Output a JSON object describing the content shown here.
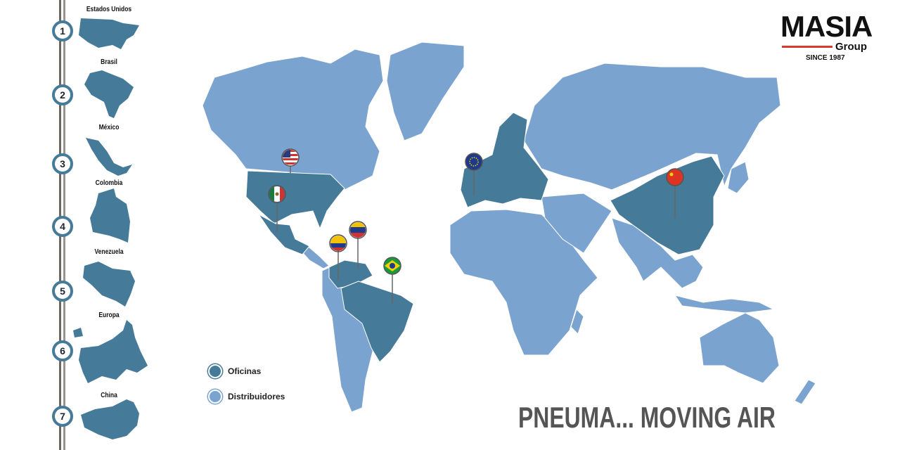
{
  "colors": {
    "office": "#457a99",
    "distributor": "#7ba3cf",
    "accent": "#d83a2e",
    "rail": "#6e6660"
  },
  "timeline": [
    {
      "number": "1",
      "country": "Estados Unidos"
    },
    {
      "number": "2",
      "country": "Brasil"
    },
    {
      "number": "3",
      "country": "México"
    },
    {
      "number": "4",
      "country": "Colombia"
    },
    {
      "number": "5",
      "country": "Venezuela"
    },
    {
      "number": "6",
      "country": "Europa"
    },
    {
      "number": "7",
      "country": "China"
    }
  ],
  "logo": {
    "name": "MASIA",
    "sub": "Group",
    "since": "SINCE 1987"
  },
  "legend": [
    {
      "label": "Oficinas"
    },
    {
      "label": "Distribuidores"
    }
  ],
  "pins": [
    {
      "flag": "usa-flag-icon"
    },
    {
      "flag": "mexico-flag-icon"
    },
    {
      "flag": "venezuela-flag-icon"
    },
    {
      "flag": "colombia-flag-icon"
    },
    {
      "flag": "brazil-flag-icon"
    },
    {
      "flag": "eu-flag-icon"
    },
    {
      "flag": "china-flag-icon"
    }
  ],
  "slogan": "PNEUMA... MOVING AIR"
}
